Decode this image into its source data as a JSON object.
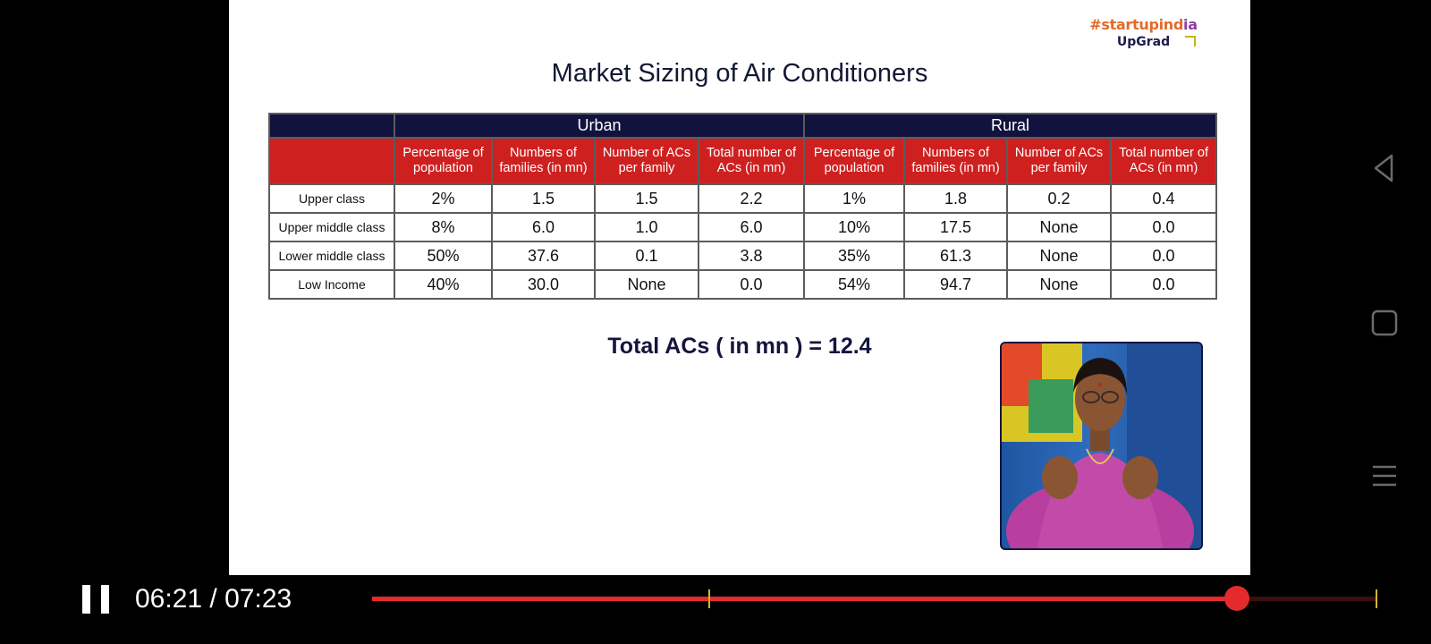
{
  "slide": {
    "logo_prefix": "#startupind",
    "logo_suffix": "ia",
    "logo_brand": "UpGrad",
    "title": "Market Sizing of Air Conditioners",
    "total_text": "Total ACs ( in mn ) = 12.4"
  },
  "table": {
    "groups": [
      "Urban",
      "Rural"
    ],
    "headers": [
      "Percentage of population",
      "Numbers of families (in mn)",
      "Number of ACs per family",
      "Total number of ACs (in mn)",
      "Percentage of population",
      "Numbers of families (in mn)",
      "Number of ACs per family",
      "Total number of ACs (in mn)"
    ],
    "rows": [
      {
        "label": "Upper class",
        "cells": [
          "2%",
          "1.5",
          "1.5",
          "2.2",
          "1%",
          "1.8",
          "0.2",
          "0.4"
        ]
      },
      {
        "label": "Upper middle class",
        "cells": [
          "8%",
          "6.0",
          "1.0",
          "6.0",
          "10%",
          "17.5",
          "None",
          "0.0"
        ]
      },
      {
        "label": "Lower middle class",
        "cells": [
          "50%",
          "37.6",
          "0.1",
          "3.8",
          "35%",
          "61.3",
          "None",
          "0.0"
        ]
      },
      {
        "label": "Low Income",
        "cells": [
          "40%",
          "30.0",
          "None",
          "0.0",
          "54%",
          "94.7",
          "None",
          "0.0"
        ]
      }
    ]
  },
  "player": {
    "current_time": "06:21",
    "separator": "/",
    "duration": "07:23",
    "progress_fraction": 0.86,
    "state": "playing"
  },
  "colors": {
    "header_navy": "#12123e",
    "header_red": "#cf2020",
    "progress": "#e32b2b"
  },
  "icons": [
    "pause-icon",
    "back-nav-icon",
    "home-nav-icon",
    "menu-nav-icon"
  ]
}
